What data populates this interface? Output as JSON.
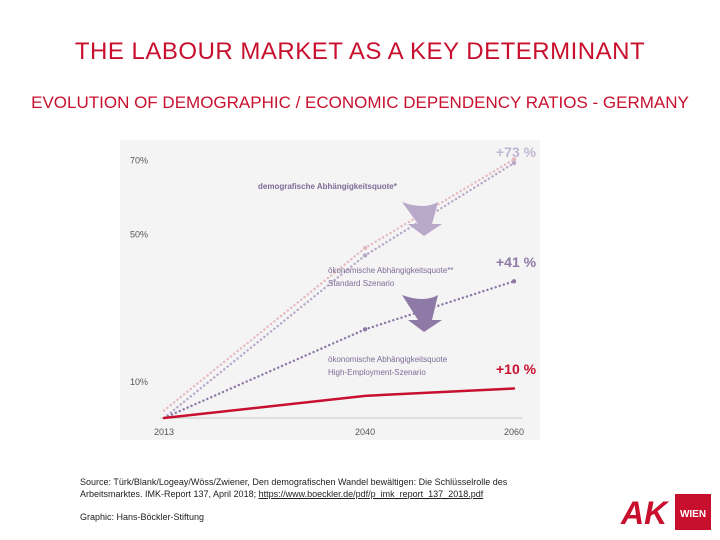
{
  "slide": {
    "title": "THE LABOUR MARKET AS A KEY DETERMINANT",
    "subtitle": "EVOLUTION OF DEMOGRAPHIC / ECONOMIC DEPENDENCY RATIOS - GERMANY"
  },
  "chart_data": {
    "type": "line",
    "x": [
      2013,
      2040,
      2060
    ],
    "xticks": [
      "2013",
      "2040",
      "2060"
    ],
    "yticks": [
      "10%",
      "50%",
      "70%"
    ],
    "ylim": [
      0,
      72
    ],
    "grid": false,
    "series": [
      {
        "name": "demografische Abhängigkeitsquote*",
        "values": [
          0,
          44,
          69
        ],
        "color": "#b8a9c9",
        "style": "dotted",
        "change_label": "+73 %"
      },
      {
        "name": "ökonomische Abhängigkeitsquote** Standard Szenario",
        "name_line1": "ökonomische Abhängigkeitsquote**",
        "name_line2": "Standard Szenario",
        "values": [
          0,
          24,
          37
        ],
        "color": "#8e7aa6",
        "style": "dotted",
        "change_label": "+41 %"
      },
      {
        "name": "ökonomische Abhängigkeitsquote High-Employment-Szenario",
        "name_line1": "ökonomische Abhängigkeitsquote",
        "name_line2": "High-Employment-Szenario",
        "values": [
          0,
          6,
          8
        ],
        "color": "#c8102e",
        "style": "solid",
        "change_label": "+10 %"
      },
      {
        "name": "",
        "values": [
          2,
          46,
          70
        ],
        "color": "#e5b9bf",
        "style": "dotted",
        "change_label": ""
      }
    ]
  },
  "footer": {
    "source_text": "Source: Türk/Blank/Logeay/Wöss/Zwiener, Den demografischen Wandel bewältigen: Die Schlüsselrolle des Arbeitsmarktes. IMK-Report 137, April 2018; ",
    "source_link": "https://www.boeckler.de/pdf/p_imk_report_137_2018.pdf",
    "graphic_credit": "Graphic: Hans-Böckler-Stiftung"
  },
  "logo": {
    "mark": "AK",
    "text": "WIEN",
    "color": "#c8102e"
  }
}
